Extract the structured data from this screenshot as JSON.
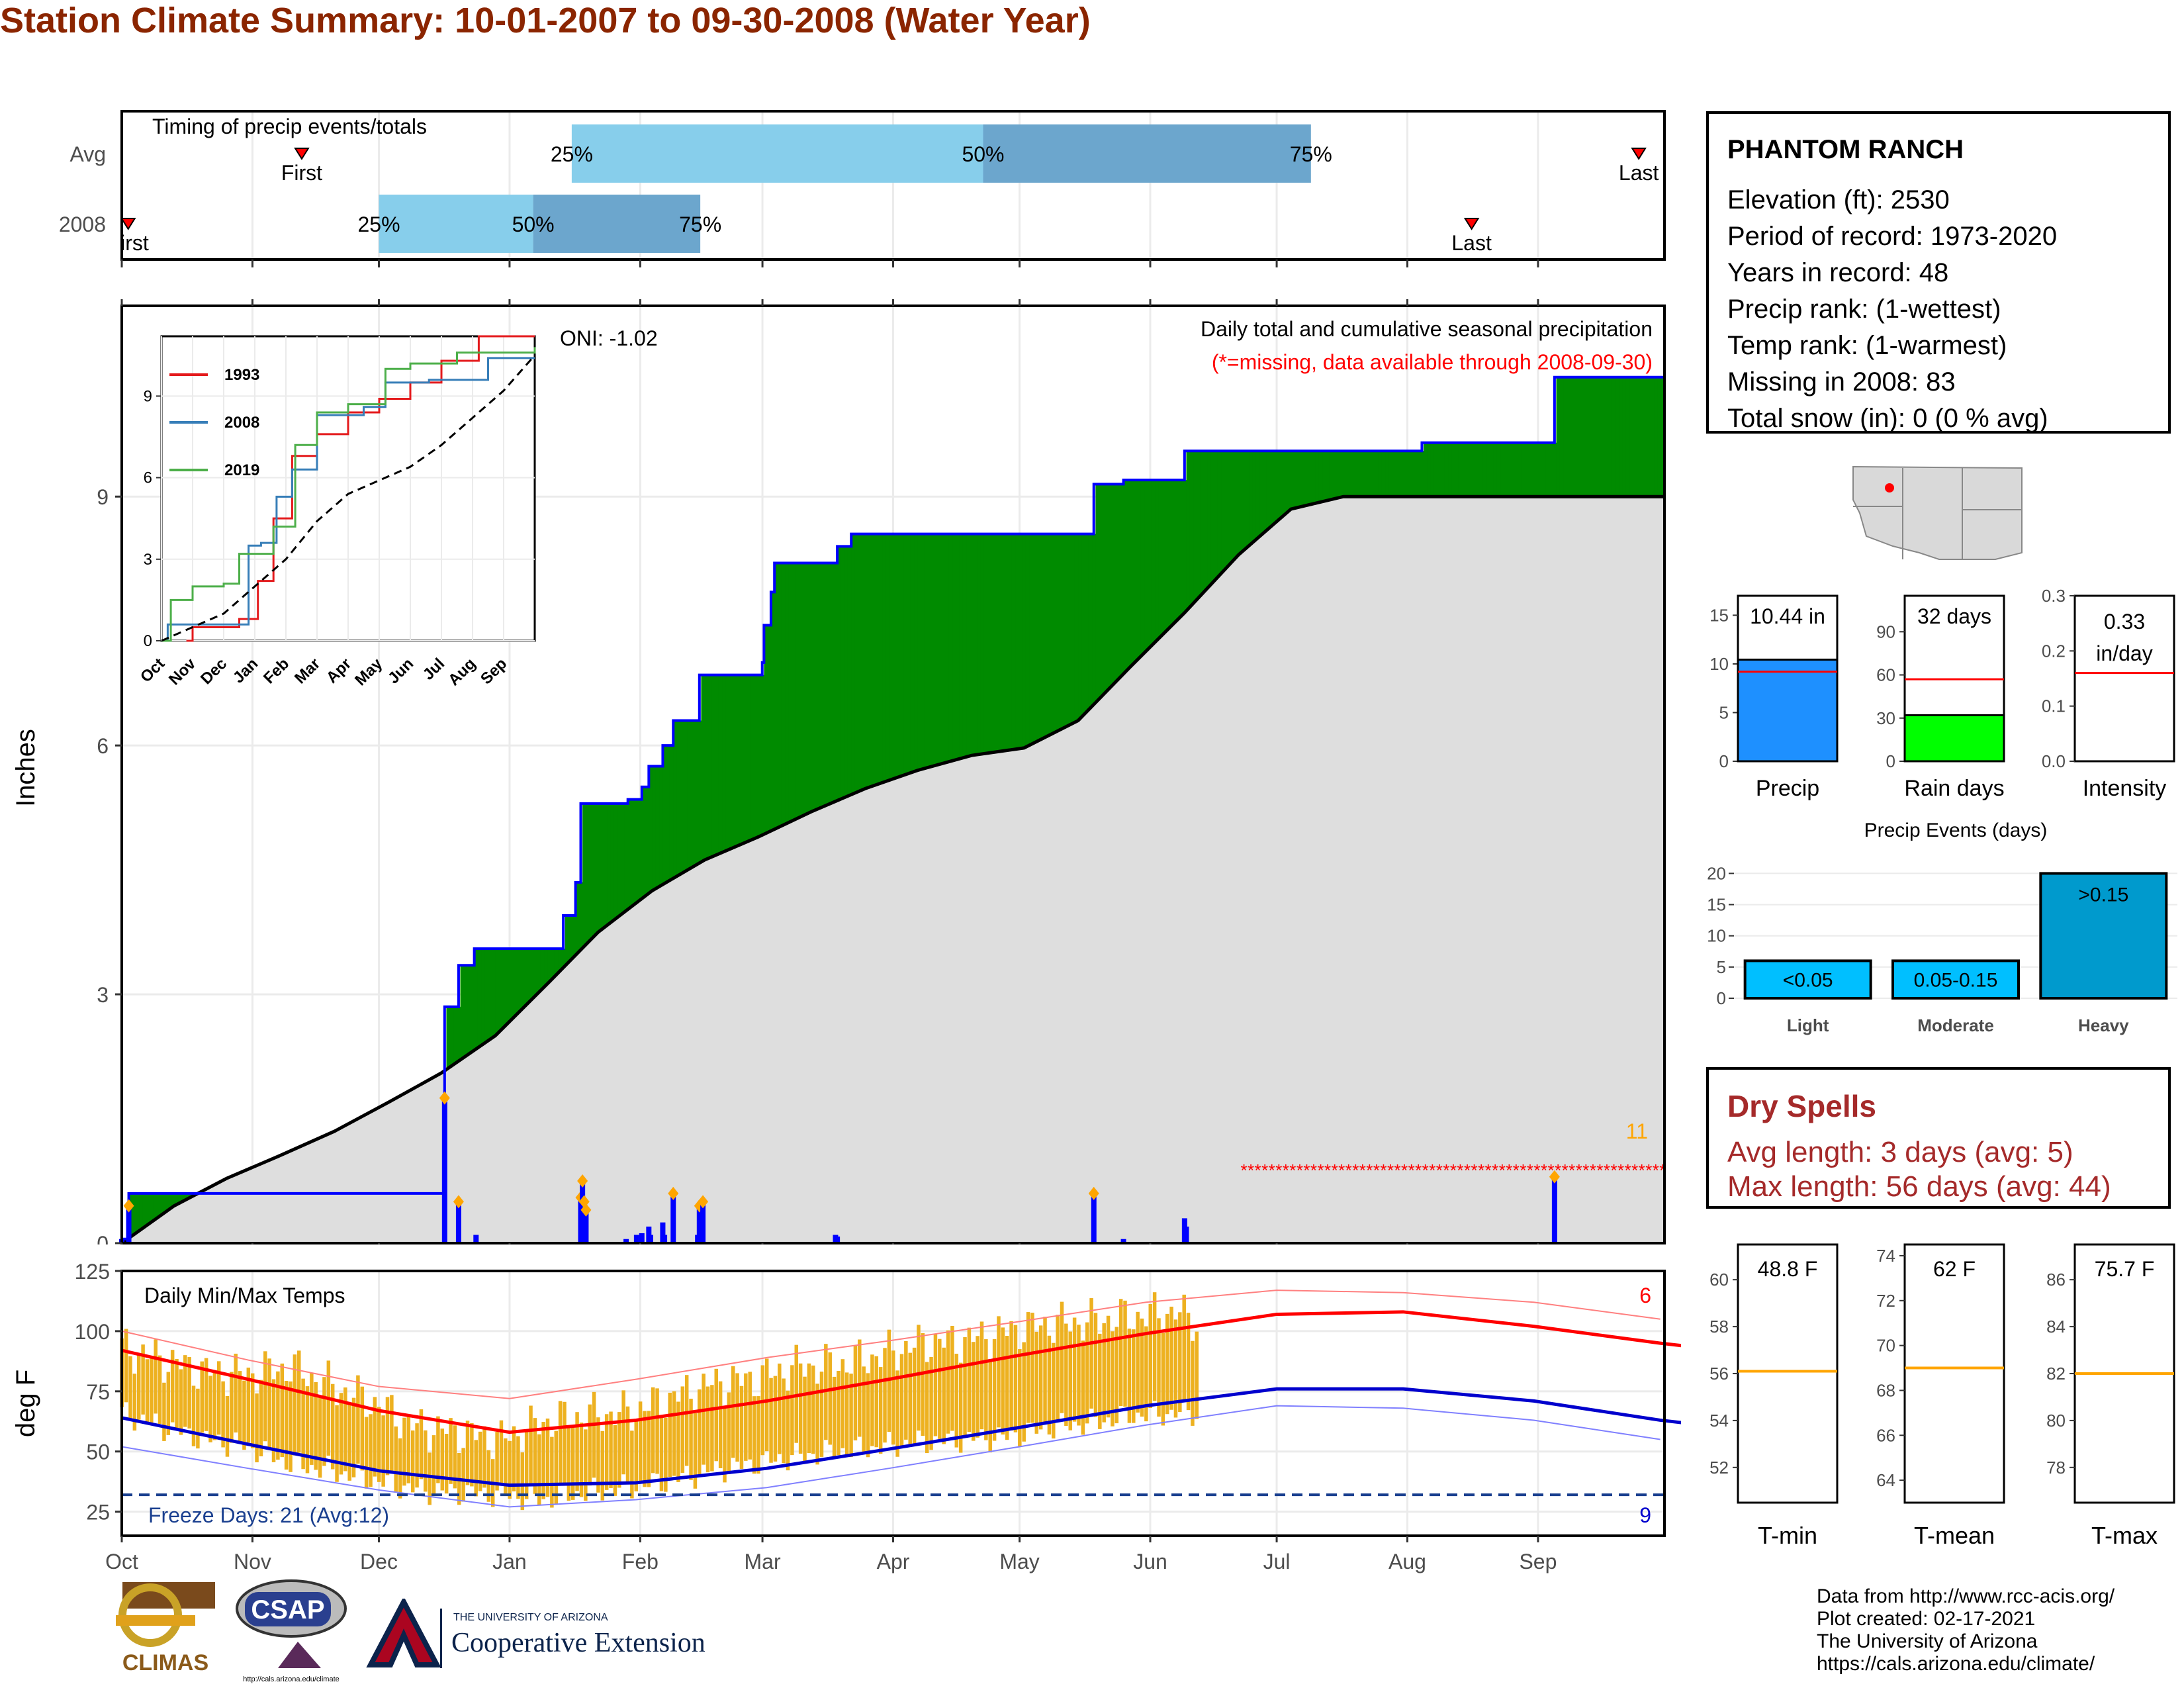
{
  "title": "Station Climate Summary: 10-01-2007 to 09-30-2008 (Water Year)",
  "timing": {
    "label": "Timing of precip events/totals",
    "rows": [
      {
        "name": "Avg",
        "first_label": "First",
        "last_label": "Last",
        "first_month": 1.4,
        "p25": 3.5,
        "p50": 6.7,
        "p75": 9.25,
        "last_month": 11.8,
        "p25_label": "25%",
        "p50_label": "50%",
        "p75_label": "75%"
      },
      {
        "name": "2008",
        "first_label": "First",
        "last_label": "Last",
        "first_month": 0.05,
        "p25": 2.0,
        "p50": 3.2,
        "p75": 4.5,
        "last_month": 10.5,
        "p25_label": "25%",
        "p50_label": "50%",
        "p75_label": "75%"
      }
    ]
  },
  "main": {
    "ylabel": "Inches",
    "subtitle": "Daily total and cumulative seasonal precipitation",
    "missing_note": "(*=missing, data available through 2008-09-30)",
    "oni": "ONI: -1.02",
    "corner_count": "11",
    "yticks": [
      "0",
      "3",
      "6",
      "9"
    ]
  },
  "inset": {
    "legend": [
      "1993",
      "2008",
      "2019"
    ],
    "yticks": [
      "0",
      "3",
      "6",
      "9"
    ],
    "months": [
      "Oct",
      "Nov",
      "Dec",
      "Jan",
      "Feb",
      "Mar",
      "Apr",
      "May",
      "Jun",
      "Jul",
      "Aug",
      "Sep"
    ]
  },
  "temps": {
    "label": "Daily Min/Max Temps",
    "ylabel": "deg F",
    "freeze": "Freeze Days: 21 (Avg:12)",
    "max_count": "6",
    "min_count": "9",
    "yticks": [
      "25",
      "50",
      "75",
      "100",
      "125"
    ],
    "months": [
      "Oct",
      "Nov",
      "Dec",
      "Jan",
      "Feb",
      "Mar",
      "Apr",
      "May",
      "Jun",
      "Jul",
      "Aug",
      "Sep"
    ]
  },
  "station": {
    "name": "PHANTOM RANCH",
    "lines": [
      "Elevation (ft): 2530",
      "Period of record: 1973-2020",
      "Years in record: 48",
      "Precip rank:  (1-wettest)",
      "Temp rank:  (1-warmest)",
      "Missing in 2008: 83",
      "Total snow (in): 0 (0 % avg)"
    ]
  },
  "mini_bars": [
    {
      "label": "Precip",
      "value_text": "10.44 in",
      "value": 10.44,
      "avg": 9.2,
      "ymax": 17,
      "ticks": [
        "0",
        "5",
        "10",
        "15"
      ],
      "tick_vals": [
        0,
        5,
        10,
        15
      ],
      "color": "#1E90FF"
    },
    {
      "label": "Rain days",
      "value_text": "32 days",
      "value": 32,
      "avg": 57,
      "ymax": 115,
      "ticks": [
        "0",
        "30",
        "60",
        "90"
      ],
      "tick_vals": [
        0,
        30,
        60,
        90
      ],
      "color": "#00FF00"
    },
    {
      "label": "Intensity",
      "value_text": "0.33 in/day",
      "value": 0.33,
      "avg": 0.16,
      "ymax": 0.3,
      "ticks": [
        "0.0",
        "0.1",
        "0.2",
        "0.3"
      ],
      "tick_vals": [
        0,
        0.1,
        0.2,
        0.3
      ],
      "color": "#FFFFFF"
    }
  ],
  "events": {
    "title": "Precip Events (days)",
    "yticks": [
      "0",
      "5",
      "10",
      "15",
      "20"
    ],
    "chart_data": {
      "type": "bar",
      "categories": [
        "Light",
        "Moderate",
        "Heavy"
      ],
      "bar_labels": [
        "<0.05",
        "0.05-0.15",
        ">0.15"
      ],
      "values": [
        6,
        6,
        20
      ],
      "colors": [
        "#00BFFF",
        "#00BFFF",
        "#009ACD"
      ]
    }
  },
  "dry": {
    "title": "Dry Spells",
    "avg": "Avg length: 3 days (avg: 5)",
    "max": "Max length: 56 days (avg: 44)"
  },
  "temp_boxes": [
    {
      "label": "T-min",
      "value_text": "48.8 F",
      "avg": 56.1,
      "ymin": 50.5,
      "ymax": 61.5,
      "ticks": [
        "52",
        "54",
        "56",
        "58",
        "60"
      ],
      "tick_vals": [
        52,
        54,
        56,
        58,
        60
      ]
    },
    {
      "label": "T-mean",
      "value_text": "62 F",
      "avg": 69,
      "ymin": 63,
      "ymax": 74.5,
      "ticks": [
        "64",
        "66",
        "68",
        "70",
        "72",
        "74"
      ],
      "tick_vals": [
        64,
        66,
        68,
        70,
        72,
        74
      ]
    },
    {
      "label": "T-max",
      "value_text": "75.7 F",
      "avg": 82,
      "ymin": 76.5,
      "ymax": 87.5,
      "ticks": [
        "78",
        "80",
        "82",
        "84",
        "86"
      ],
      "tick_vals": [
        78,
        80,
        82,
        84,
        86
      ]
    }
  ],
  "footer": {
    "lines": [
      "Data from http://www.rcc-acis.org/",
      "Plot created: 02-17-2021",
      "The University of Arizona",
      "https://cals.arizona.edu/climate/"
    ],
    "climas": "CLIMAS",
    "csap": "CSAP",
    "csap_url": "http://cals.arizona.edu/climate",
    "ua_small": "THE UNIVERSITY OF ARIZONA",
    "ua_big": "Cooperative Extension"
  },
  "chart_data": [
    {
      "type": "area",
      "title": "Daily total and cumulative seasonal precipitation",
      "ylabel": "Inches",
      "ylim": [
        0,
        11.3
      ],
      "x_unit": "day of water year (Oct 1 = 0)",
      "observed_cumulative": [
        [
          0,
          0.05
        ],
        [
          4,
          0.6
        ],
        [
          62,
          0.6
        ],
        [
          184,
          0.6
        ],
        [
          185,
          2.85
        ],
        [
          193,
          3.35
        ],
        [
          202,
          3.55
        ],
        [
          234,
          3.55
        ],
        [
          252,
          3.55
        ],
        [
          253,
          3.95
        ],
        [
          260,
          4.35
        ],
        [
          263,
          5.3
        ],
        [
          290,
          5.35
        ],
        [
          298,
          5.5
        ],
        [
          302,
          5.75
        ],
        [
          310,
          6.0
        ],
        [
          316,
          6.3
        ],
        [
          331,
          6.85
        ],
        [
          351,
          6.85
        ],
        [
          367,
          7.0
        ],
        [
          368,
          7.45
        ],
        [
          372,
          7.85
        ],
        [
          374,
          8.2
        ],
        [
          409,
          8.2
        ],
        [
          410,
          8.4
        ],
        [
          418,
          8.55
        ],
        [
          455,
          8.55
        ],
        [
          556,
          8.55
        ],
        [
          557,
          9.15
        ],
        [
          574,
          9.2
        ],
        [
          608,
          9.2
        ],
        [
          609,
          9.55
        ],
        [
          700,
          9.55
        ],
        [
          744,
          9.55
        ],
        [
          745,
          9.65
        ],
        [
          820,
          9.65
        ],
        [
          821,
          10.44
        ],
        [
          884,
          10.44
        ]
      ],
      "average_cumulative": [
        [
          0,
          0
        ],
        [
          30,
          0.45
        ],
        [
          60,
          0.78
        ],
        [
          90,
          1.05
        ],
        [
          122,
          1.35
        ],
        [
          153,
          1.7
        ],
        [
          183,
          2.05
        ],
        [
          214,
          2.5
        ],
        [
          245,
          3.15
        ],
        [
          273,
          3.75
        ],
        [
          304,
          4.25
        ],
        [
          334,
          4.62
        ],
        [
          365,
          4.9
        ],
        [
          395,
          5.2
        ],
        [
          426,
          5.48
        ],
        [
          456,
          5.7
        ],
        [
          487,
          5.88
        ],
        [
          517,
          5.97
        ],
        [
          548,
          6.3
        ],
        [
          578,
          6.95
        ],
        [
          609,
          7.6
        ],
        [
          640,
          8.3
        ],
        [
          670,
          8.85
        ],
        [
          700,
          9.0
        ]
      ],
      "daily_bars": [
        [
          0,
          0.05
        ],
        [
          4,
          0.45
        ],
        [
          185,
          1.75
        ],
        [
          193,
          0.5
        ],
        [
          203,
          0.1
        ],
        [
          263,
          0.55
        ],
        [
          264,
          0.75
        ],
        [
          265,
          0.5
        ],
        [
          266,
          0.4
        ],
        [
          289,
          0.05
        ],
        [
          295,
          0.1
        ],
        [
          298,
          0.12
        ],
        [
          302,
          0.2
        ],
        [
          303,
          0.1
        ],
        [
          310,
          0.25
        ],
        [
          311,
          0.1
        ],
        [
          316,
          0.6
        ],
        [
          330,
          0.1
        ],
        [
          331,
          0.45
        ],
        [
          333,
          0.5
        ],
        [
          409,
          0.1
        ],
        [
          410,
          0.08
        ],
        [
          557,
          0.6
        ],
        [
          574,
          0.05
        ],
        [
          609,
          0.3
        ],
        [
          610,
          0.2
        ],
        [
          821,
          0.8
        ]
      ],
      "missing_days_range": [
        643,
        884
      ]
    },
    {
      "type": "line",
      "title": "Daily Min/Max Temps",
      "ylabel": "deg F",
      "ylim": [
        15,
        125
      ],
      "avg_max": [
        [
          0,
          92
        ],
        [
          30,
          80
        ],
        [
          61,
          67
        ],
        [
          92,
          58
        ],
        [
          122,
          63
        ],
        [
          153,
          71
        ],
        [
          182,
          80
        ],
        [
          213,
          90
        ],
        [
          243,
          99
        ],
        [
          274,
          107
        ],
        [
          304,
          108
        ],
        [
          335,
          102
        ],
        [
          365,
          95
        ],
        [
          370,
          94
        ]
      ],
      "avg_min": [
        [
          0,
          64
        ],
        [
          30,
          53
        ],
        [
          61,
          42
        ],
        [
          92,
          36
        ],
        [
          122,
          37
        ],
        [
          153,
          43
        ],
        [
          182,
          51
        ],
        [
          213,
          60
        ],
        [
          243,
          69
        ],
        [
          274,
          76
        ],
        [
          304,
          76
        ],
        [
          335,
          71
        ],
        [
          365,
          63
        ],
        [
          370,
          62
        ]
      ],
      "record_max": [
        [
          0,
          100
        ],
        [
          30,
          88
        ],
        [
          61,
          77
        ],
        [
          92,
          72
        ],
        [
          122,
          80
        ],
        [
          153,
          89
        ],
        [
          182,
          96
        ],
        [
          213,
          104
        ],
        [
          243,
          112
        ],
        [
          274,
          117
        ],
        [
          304,
          116
        ],
        [
          335,
          112
        ],
        [
          365,
          105
        ]
      ],
      "record_min": [
        [
          0,
          52
        ],
        [
          30,
          43
        ],
        [
          61,
          34
        ],
        [
          92,
          27
        ],
        [
          122,
          30
        ],
        [
          153,
          35
        ],
        [
          182,
          43
        ],
        [
          213,
          52
        ],
        [
          243,
          61
        ],
        [
          274,
          69
        ],
        [
          304,
          68
        ],
        [
          335,
          63
        ],
        [
          365,
          55
        ]
      ],
      "freeze_line": 32,
      "daily_ranges": [
        [
          0,
          66,
          93
        ],
        [
          10,
          60,
          88
        ],
        [
          20,
          55,
          83
        ],
        [
          30,
          52,
          82
        ],
        [
          40,
          45,
          85
        ],
        [
          50,
          42,
          77
        ],
        [
          60,
          38,
          70
        ],
        [
          70,
          34,
          60
        ],
        [
          80,
          33,
          58
        ],
        [
          90,
          32,
          55
        ],
        [
          100,
          30,
          62
        ],
        [
          110,
          33,
          65
        ],
        [
          120,
          35,
          66
        ],
        [
          130,
          38,
          72
        ],
        [
          140,
          42,
          78
        ],
        [
          150,
          45,
          80
        ],
        [
          160,
          48,
          85
        ],
        [
          170,
          50,
          86
        ],
        [
          180,
          52,
          90
        ],
        [
          190,
          54,
          95
        ],
        [
          200,
          55,
          96
        ],
        [
          210,
          56,
          100
        ],
        [
          220,
          60,
          103
        ],
        [
          230,
          62,
          104
        ],
        [
          240,
          65,
          106
        ],
        [
          250,
          66,
          108
        ],
        [
          255,
          66,
          104
        ]
      ]
    }
  ]
}
